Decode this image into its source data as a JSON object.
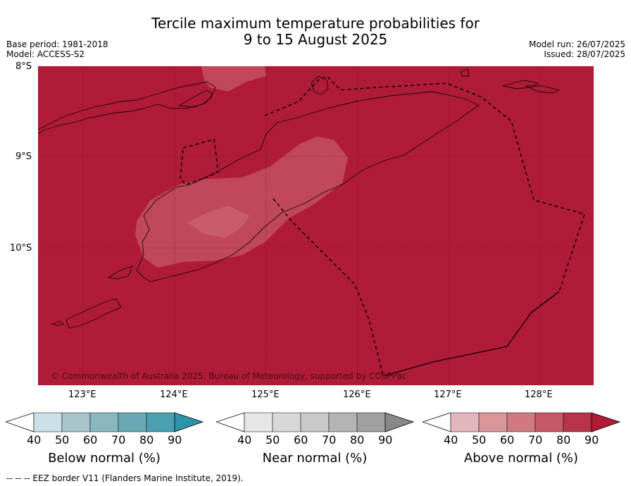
{
  "header": {
    "title_line1": "Tercile maximum temperature probabilities for",
    "title_line2": "9 to 15 August 2025",
    "base_period": "Base period: 1981-2018",
    "model": "Model: ACCESS-S2",
    "model_run": "Model run: 26/07/2025",
    "issued": "Issued: 28/07/2025"
  },
  "map": {
    "lat_labels": [
      "8°S",
      "9°S",
      "10°S"
    ],
    "lon_labels": [
      "123°E",
      "124°E",
      "125°E",
      "126°E",
      "127°E",
      "128°E"
    ],
    "copyright": "© Commonwealth of Australia 2025, Bureau of Meteorology, supported by COSPPac",
    "fill_color": "#b01c38",
    "lighter_patch_color": "#c0485a",
    "lightest_patch_color": "#c85c6a"
  },
  "colorbars": [
    {
      "label": "Below normal (%)",
      "ticks": [
        "40",
        "50",
        "60",
        "70",
        "80",
        "90"
      ],
      "colors": [
        "#c8e0e6",
        "#a7c5cb",
        "#89b7c0",
        "#6aa8b4",
        "#4aa0b0",
        "#2d93a8"
      ]
    },
    {
      "label": "Near normal (%)",
      "ticks": [
        "40",
        "50",
        "60",
        "70",
        "80",
        "90"
      ],
      "colors": [
        "#e6e6e6",
        "#d8d8d8",
        "#c8c8c8",
        "#b4b4b4",
        "#a0a0a0",
        "#888888"
      ]
    },
    {
      "label": "Above normal (%)",
      "ticks": [
        "40",
        "50",
        "60",
        "70",
        "80",
        "90"
      ],
      "colors": [
        "#e3b7bd",
        "#d99599",
        "#cf7a80",
        "#c45a66",
        "#b83448",
        "#b01c38"
      ]
    }
  ],
  "footer": "--  --  -- EEZ border V11 (Flanders Marine Institute, 2019)."
}
